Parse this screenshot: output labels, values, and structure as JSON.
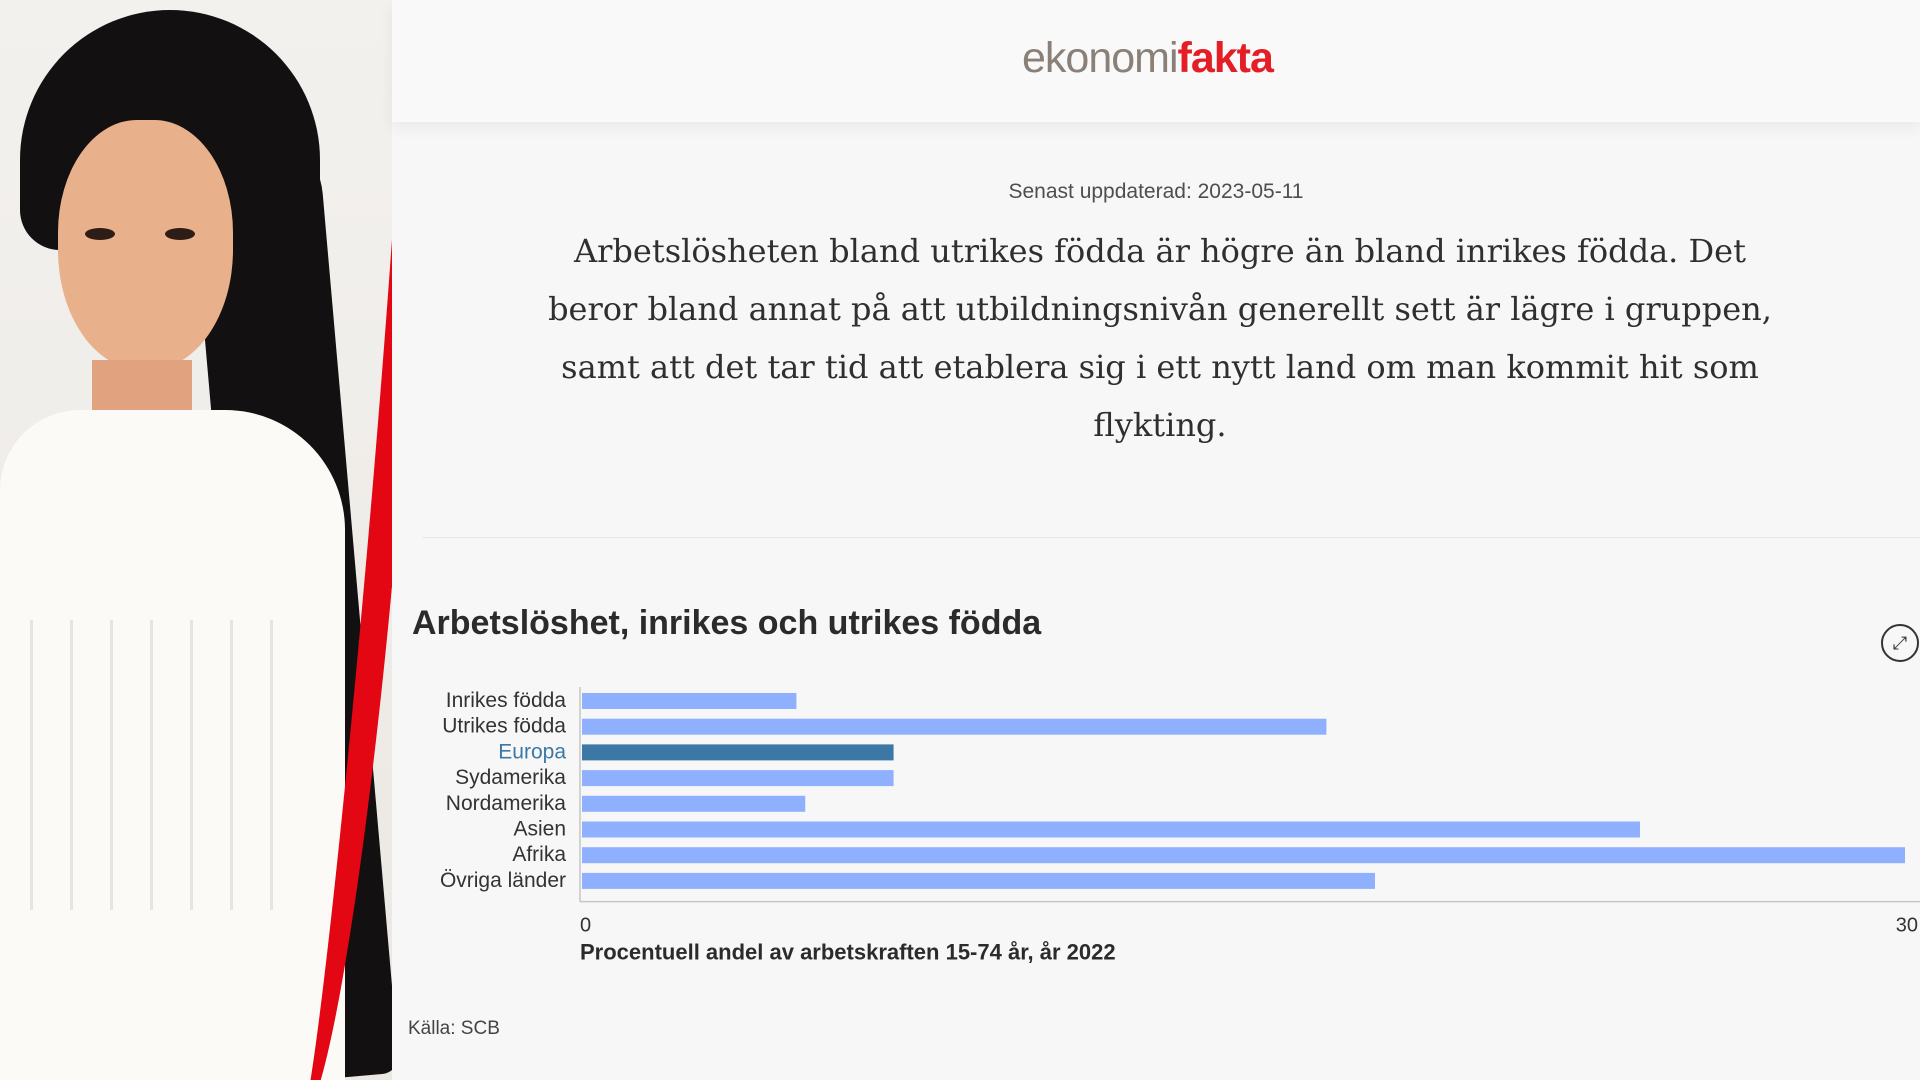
{
  "brand": {
    "logo_part1": "ekonomi",
    "logo_part2": "fakta",
    "accent": "#e41e25",
    "muted": "#8a8078"
  },
  "article": {
    "updated": "Senast uppdaterad: 2023-05-11",
    "lead": "Arbetslösheten bland utrikes födda är högre än bland inrikes födda. Det beror bland annat på att utbildningsnivån generellt sett är lägre i gruppen, samt att det tar tid att etablera sig i ett nytt land om man kommit hit som flykting."
  },
  "chart_block": {
    "title": "Arbetslöshet, inrikes och utrikes födda",
    "expand_icon": "expand-icon",
    "source": "Källa: SCB"
  },
  "chart_data": {
    "type": "bar",
    "orientation": "horizontal",
    "categories": [
      "Inrikes födda",
      "Utrikes födda",
      "Europa",
      "Sydamerika",
      "Nordamerika",
      "Asien",
      "Afrika",
      "Övriga länder"
    ],
    "values": [
      4.9,
      16.9,
      7.1,
      7.1,
      5.1,
      24.0,
      30.0,
      18.0
    ],
    "highlight": "Europa",
    "xlabel": "Procentuell andel av arbetskraften 15-74 år, år 2022",
    "xlim": [
      0,
      30
    ],
    "xticks": [
      "0",
      "30"
    ],
    "colors": {
      "bar": "#8fb0ff",
      "highlight_bar": "#3b78a6",
      "highlight_label": "#3b78a6",
      "axis": "#c6c6c6"
    }
  },
  "overlay": {
    "arc_color": "#e30613"
  }
}
